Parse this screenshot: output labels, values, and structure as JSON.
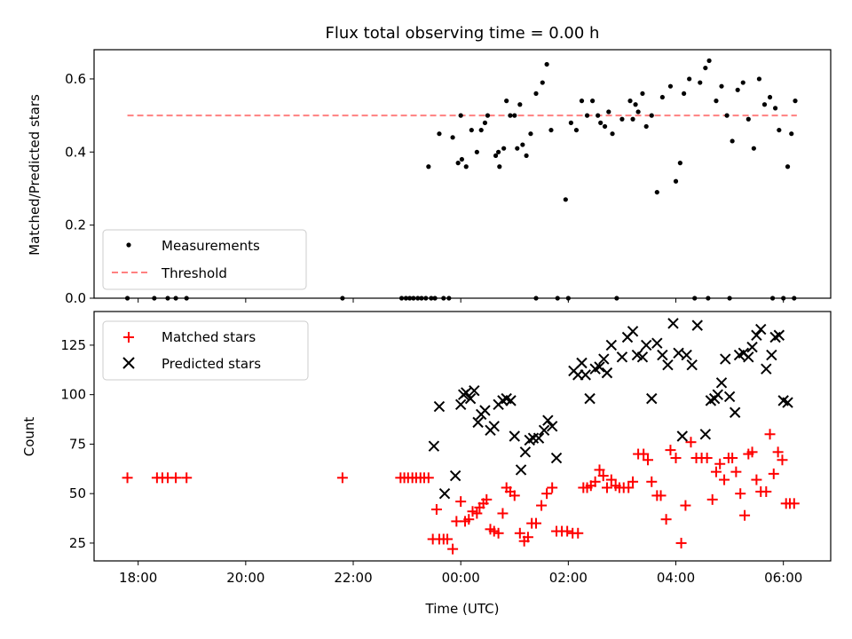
{
  "chart_data": [
    {
      "type": "scatter",
      "title": "Flux total observing time = 0.00 h",
      "ylabel": "Matched/Predicted stars",
      "ylim": [
        0,
        0.68
      ],
      "yticks": [
        "0.0",
        "0.2",
        "0.4",
        "0.6"
      ],
      "xlim_hours": [
        -6.82,
        6.88
      ],
      "legend_position": "lower-left",
      "threshold": {
        "label": "Threshold",
        "value": 0.5,
        "x_range": [
          -6.2,
          6.25
        ],
        "color": "#ff8080"
      },
      "series": [
        {
          "name": "Measurements",
          "color": "#000000",
          "x": [
            -6.2,
            -5.7,
            -5.45,
            -5.3,
            -5.1,
            -2.2,
            -1.1,
            -1.02,
            -0.95,
            -0.88,
            -0.8,
            -0.73,
            -0.65,
            -0.55,
            -0.48,
            -0.32,
            -0.22,
            -0.15,
            -0.05,
            0.02,
            0.1,
            0.2,
            0.3,
            0.38,
            0.45,
            0.5,
            0.65,
            0.72,
            0.8,
            0.85,
            0.92,
            1.0,
            1.05,
            1.15,
            1.22,
            1.3,
            1.4,
            1.52,
            1.6,
            1.68,
            1.8,
            1.95,
            2.05,
            2.15,
            2.25,
            2.35,
            2.45,
            2.55,
            2.6,
            2.68,
            2.75,
            2.82,
            2.9,
            3.0,
            3.15,
            3.25,
            3.38,
            3.45,
            3.55,
            3.65,
            3.75,
            3.9,
            4.0,
            4.08,
            4.15,
            4.25,
            4.35,
            4.45,
            4.55,
            4.62,
            4.75,
            4.85,
            4.95,
            5.05,
            5.15,
            5.25,
            5.35,
            5.45,
            5.55,
            5.65,
            5.75,
            5.85,
            5.92,
            6.0,
            6.08,
            6.15,
            6.22,
            -0.6,
            -0.4,
            0.0,
            0.7,
            1.1,
            1.4,
            2.0,
            3.2,
            3.3,
            4.6,
            5.0,
            5.8,
            6.2
          ],
          "y": [
            0.0,
            0.0,
            0.0,
            0.0,
            0.0,
            0.0,
            0.0,
            0.0,
            0.0,
            0.0,
            0.0,
            0.0,
            0.0,
            0.0,
            0.0,
            0.0,
            0.0,
            0.44,
            0.37,
            0.38,
            0.36,
            0.46,
            0.4,
            0.46,
            0.48,
            0.5,
            0.39,
            0.36,
            0.41,
            0.54,
            0.5,
            0.5,
            0.41,
            0.42,
            0.39,
            0.45,
            0.56,
            0.59,
            0.64,
            0.46,
            0.0,
            0.27,
            0.48,
            0.46,
            0.54,
            0.5,
            0.54,
            0.5,
            0.48,
            0.47,
            0.51,
            0.45,
            0.0,
            0.49,
            0.54,
            0.53,
            0.56,
            0.47,
            0.5,
            0.29,
            0.55,
            0.58,
            0.32,
            0.37,
            0.56,
            0.6,
            0.0,
            0.59,
            0.63,
            0.65,
            0.54,
            0.58,
            0.5,
            0.43,
            0.57,
            0.59,
            0.49,
            0.41,
            0.6,
            0.53,
            0.55,
            0.52,
            0.46,
            0.0,
            0.36,
            0.45,
            0.54,
            0.36,
            0.45,
            0.5,
            0.4,
            0.53,
            0.0,
            0.0,
            0.49,
            0.51,
            0.0,
            0.0,
            0.0,
            0.0
          ]
        }
      ]
    },
    {
      "type": "scatter",
      "xlabel": "Time (UTC)",
      "ylabel": "Count",
      "ylim": [
        16,
        142
      ],
      "yticks": [
        "25",
        "50",
        "75",
        "100",
        "125"
      ],
      "xticks": [
        "18:00",
        "20:00",
        "22:00",
        "00:00",
        "02:00",
        "04:00",
        "06:00"
      ],
      "xlim_hours": [
        -6.82,
        6.88
      ],
      "legend_position": "upper-left",
      "series": [
        {
          "name": "Matched stars",
          "color": "#ff0000",
          "marker": "plus",
          "x": [
            -6.2,
            -5.65,
            -5.55,
            -5.45,
            -5.3,
            -5.1,
            -2.2,
            -1.12,
            -1.05,
            -0.98,
            -0.9,
            -0.83,
            -0.75,
            -0.68,
            -0.6,
            -0.52,
            -0.45,
            -0.4,
            -0.32,
            -0.25,
            -0.15,
            -0.08,
            0.0,
            0.08,
            0.15,
            0.22,
            0.3,
            0.35,
            0.42,
            0.48,
            0.55,
            0.62,
            0.7,
            0.78,
            0.85,
            0.92,
            1.0,
            1.1,
            1.18,
            1.25,
            1.32,
            1.4,
            1.5,
            1.6,
            1.7,
            1.78,
            1.88,
            1.98,
            2.08,
            2.18,
            2.28,
            2.35,
            2.42,
            2.5,
            2.58,
            2.65,
            2.72,
            2.8,
            2.88,
            2.95,
            3.03,
            3.12,
            3.2,
            3.3,
            3.4,
            3.48,
            3.55,
            3.65,
            3.72,
            3.82,
            3.9,
            4.0,
            4.1,
            4.18,
            4.28,
            4.38,
            4.48,
            4.58,
            4.68,
            4.75,
            4.82,
            4.9,
            4.98,
            5.05,
            5.12,
            5.2,
            5.28,
            5.35,
            5.42,
            5.5,
            5.58,
            5.68,
            5.75,
            5.82,
            5.9,
            5.98,
            6.05,
            6.12,
            6.2
          ],
          "y": [
            58,
            58,
            58,
            58,
            58,
            58,
            58,
            58,
            58,
            58,
            58,
            58,
            58,
            58,
            58,
            27,
            42,
            27,
            27,
            27,
            22,
            36,
            46,
            36,
            37,
            41,
            40,
            43,
            45,
            47,
            32,
            31,
            30,
            40,
            53,
            51,
            49,
            30,
            26,
            28,
            35,
            35,
            44,
            50,
            53,
            31,
            31,
            31,
            30,
            30,
            53,
            53,
            54,
            56,
            62,
            59,
            53,
            57,
            54,
            53,
            53,
            53,
            56,
            70,
            70,
            67,
            56,
            49,
            49,
            37,
            72,
            68,
            25,
            44,
            76,
            68,
            68,
            68,
            47,
            61,
            65,
            57,
            68,
            68,
            61,
            50,
            39,
            70,
            71,
            57,
            51,
            51,
            80,
            60,
            71,
            67,
            45,
            45,
            45
          ]
        },
        {
          "name": "Predicted stars",
          "color": "#000000",
          "marker": "x",
          "x": [
            -0.5,
            -0.4,
            -0.3,
            -0.1,
            0.0,
            0.05,
            0.1,
            0.18,
            0.25,
            0.32,
            0.38,
            0.45,
            0.55,
            0.62,
            0.7,
            0.78,
            0.85,
            0.93,
            1.0,
            1.12,
            1.2,
            1.28,
            1.35,
            1.45,
            1.55,
            1.62,
            1.7,
            1.78,
            2.1,
            2.18,
            2.25,
            2.32,
            2.4,
            2.5,
            2.58,
            2.66,
            2.72,
            2.8,
            3.0,
            3.1,
            3.2,
            3.28,
            3.38,
            3.45,
            3.55,
            3.65,
            3.75,
            3.85,
            3.95,
            4.05,
            4.12,
            4.2,
            4.3,
            4.4,
            4.55,
            4.65,
            4.72,
            4.78,
            4.85,
            4.92,
            5.0,
            5.1,
            5.18,
            5.26,
            5.35,
            5.42,
            5.5,
            5.58,
            5.68,
            5.78,
            5.85,
            5.92,
            6.0,
            6.08
          ],
          "y": [
            74,
            94,
            50,
            59,
            95,
            100,
            101,
            98,
            102,
            86,
            90,
            92,
            82,
            84,
            95,
            97,
            98,
            97,
            79,
            62,
            71,
            77,
            78,
            78,
            82,
            87,
            84,
            68,
            112,
            110,
            116,
            110,
            98,
            113,
            114,
            118,
            111,
            125,
            119,
            129,
            132,
            120,
            119,
            125,
            98,
            126,
            120,
            115,
            136,
            121,
            79,
            120,
            115,
            135,
            80,
            97,
            98,
            100,
            106,
            118,
            99,
            91,
            120,
            121,
            119,
            124,
            130,
            133,
            113,
            120,
            129,
            130,
            97,
            96
          ]
        }
      ]
    }
  ]
}
